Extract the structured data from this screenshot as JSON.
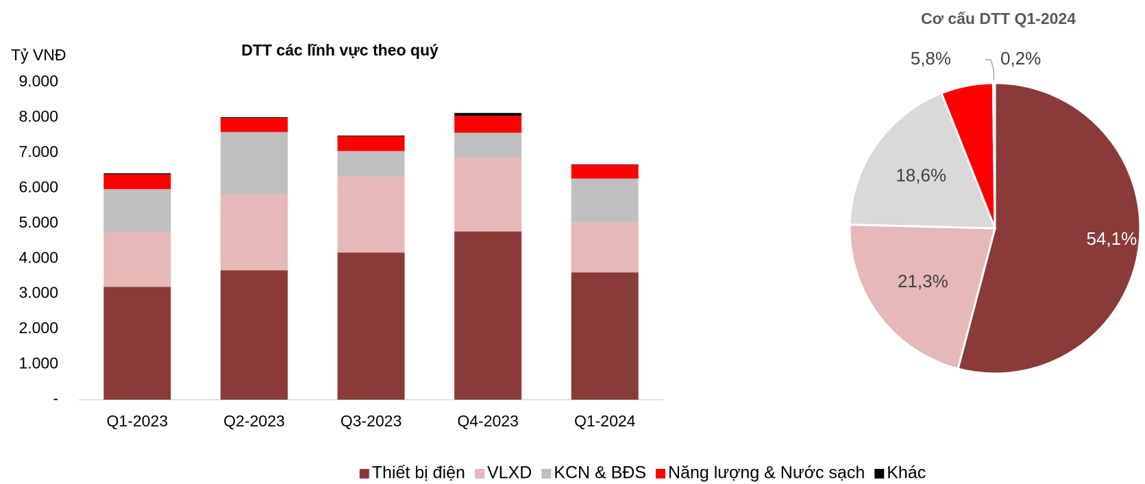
{
  "chart_data": [
    {
      "type": "bar",
      "stacked": true,
      "title": "DTT các lĩnh vực theo quý",
      "y_label": "Tỷ VNĐ",
      "categories": [
        "Q1-2023",
        "Q2-2023",
        "Q3-2023",
        "Q4-2023",
        "Q1-2024"
      ],
      "series": [
        {
          "name": "Thiết bị điện",
          "color": "#8b3a3a",
          "values": [
            3200,
            3670,
            4170,
            4770,
            3610
          ]
        },
        {
          "name": "VLXD",
          "color": "#e6b8b7",
          "values": [
            1550,
            2160,
            2160,
            2100,
            1420
          ]
        },
        {
          "name": "KCN & BĐS",
          "color": "#bfbfbf",
          "values": [
            1220,
            1760,
            720,
            700,
            1240
          ]
        },
        {
          "name": "Năng lượng & Nước sạch",
          "color": "#ff0000",
          "values": [
            420,
            400,
            420,
            480,
            390
          ]
        },
        {
          "name": "Khác",
          "color": "#000000",
          "values": [
            30,
            20,
            20,
            80,
            13
          ]
        }
      ],
      "ylim": [
        0,
        9000
      ],
      "yticks": [
        {
          "value": 0,
          "label": "-"
        },
        {
          "value": 1000,
          "label": "1.000"
        },
        {
          "value": 2000,
          "label": "2.000"
        },
        {
          "value": 3000,
          "label": "3.000"
        },
        {
          "value": 4000,
          "label": "4.000"
        },
        {
          "value": 5000,
          "label": "5.000"
        },
        {
          "value": 6000,
          "label": "6.000"
        },
        {
          "value": 7000,
          "label": "7.000"
        },
        {
          "value": 8000,
          "label": "8.000"
        },
        {
          "value": 9000,
          "label": "9.000"
        }
      ],
      "grid": false,
      "legend": "bottom"
    },
    {
      "type": "pie",
      "title": "Cơ cấu DTT Q1-2024",
      "values": [
        54.1,
        21.3,
        18.6,
        5.8,
        0.2
      ],
      "value_labels": [
        "54,1%",
        "21,3%",
        "18,6%",
        "5,8%",
        "0,2%"
      ],
      "colors": [
        "#8b3a3a",
        "#e6b8b7",
        "#d9d9d9",
        "#ff0000",
        "#000000"
      ]
    }
  ]
}
